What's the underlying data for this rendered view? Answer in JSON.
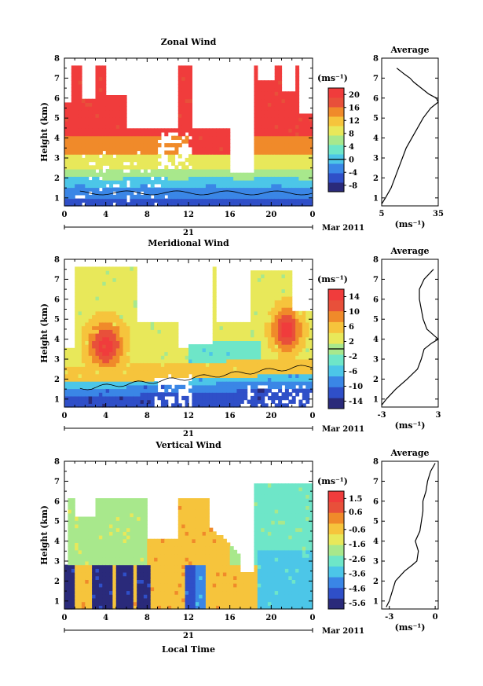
{
  "chart_data": [
    {
      "type": "heatmap",
      "title": "Zonal Wind",
      "ylabel": "Height (km)",
      "ylim": [
        0.6,
        8
      ],
      "y_ticks": [
        "1",
        "2",
        "3",
        "4",
        "5",
        "6",
        "7",
        "8"
      ],
      "xlim": [
        0,
        24
      ],
      "x_ticks": [
        "0",
        "4",
        "8",
        "12",
        "16",
        "20",
        "0"
      ],
      "date_day": "21",
      "date_month": "Mar 2011",
      "colorbar_unit": "(ms⁻¹)",
      "colorbar_ticks": [
        "20",
        "16",
        "12",
        "8",
        "4",
        "0",
        "-4",
        "-8"
      ],
      "colorbar_range": [
        -10,
        22
      ],
      "colors": [
        "#2a2a7a",
        "#2f4fc8",
        "#3a86e6",
        "#4cc6e8",
        "#6ee6c8",
        "#a8e88c",
        "#e8e85a",
        "#f6c43c",
        "#f08a2a",
        "#e8503a",
        "#f03c3c"
      ],
      "average": {
        "title": "Average",
        "xlabel": "(ms⁻¹)",
        "x_ticks": [
          "5",
          "35"
        ],
        "xlim": [
          5,
          35
        ],
        "profile_height_km": [
          0.7,
          1.0,
          1.5,
          2.0,
          2.5,
          3.0,
          3.5,
          4.0,
          4.5,
          5.0,
          5.5,
          5.8,
          6.0,
          6.2,
          6.5,
          6.8,
          7.0,
          7.2,
          7.5
        ],
        "profile_value": [
          5,
          7,
          10,
          12,
          14,
          16,
          18,
          21,
          24,
          27,
          31,
          35,
          34,
          30,
          26,
          22,
          20,
          17,
          13
        ]
      }
    },
    {
      "type": "heatmap",
      "title": "Meridional Wind",
      "ylabel": "Height (km)",
      "ylim": [
        0.6,
        8
      ],
      "y_ticks": [
        "1",
        "2",
        "3",
        "4",
        "5",
        "6",
        "7",
        "8"
      ],
      "xlim": [
        0,
        24
      ],
      "x_ticks": [
        "0",
        "4",
        "8",
        "12",
        "16",
        "20",
        "0"
      ],
      "date_day": "21",
      "date_month": "Mar 2011",
      "colorbar_unit": "(ms⁻¹)",
      "colorbar_ticks": [
        "14",
        "10",
        "6",
        "2",
        "-2",
        "-6",
        "-10",
        "-14"
      ],
      "colorbar_range": [
        -16,
        16
      ],
      "colors": [
        "#2a2a7a",
        "#2f4fc8",
        "#3a86e6",
        "#4cc6e8",
        "#6ee6c8",
        "#a8e88c",
        "#e8e85a",
        "#f6c43c",
        "#f08a2a",
        "#e8503a",
        "#f03c3c"
      ],
      "average": {
        "title": "Average",
        "xlabel": "(ms⁻¹)",
        "x_ticks": [
          "-3",
          "3"
        ],
        "xlim": [
          -3,
          3
        ],
        "profile_height_km": [
          0.7,
          1.0,
          1.5,
          2.0,
          2.5,
          3.0,
          3.5,
          3.8,
          4.0,
          4.5,
          5.0,
          5.5,
          6.0,
          6.5,
          7.0,
          7.5
        ],
        "profile_value": [
          -3,
          -2.5,
          -1.5,
          -0.3,
          0.8,
          1.2,
          1.5,
          2.3,
          3.0,
          1.8,
          1.4,
          1.2,
          1.0,
          1.0,
          1.5,
          2.5
        ]
      }
    },
    {
      "type": "heatmap",
      "title": "Vertical Wind",
      "ylabel": "Height (km)",
      "xlabel": "Local Time",
      "ylim": [
        0.6,
        8
      ],
      "y_ticks": [
        "1",
        "2",
        "3",
        "4",
        "5",
        "6",
        "7",
        "8"
      ],
      "xlim": [
        0,
        24
      ],
      "x_ticks": [
        "0",
        "4",
        "8",
        "12",
        "16",
        "20",
        "0"
      ],
      "date_day": "21",
      "date_month": "Mar 2011",
      "colorbar_unit": "(ms⁻¹)",
      "colorbar_ticks": [
        "1.5",
        "0.6",
        "-0.6",
        "-1.6",
        "-2.6",
        "-3.6",
        "-4.6",
        "-5.6"
      ],
      "colorbar_range": [
        -6,
        2
      ],
      "colors": [
        "#2a2a7a",
        "#2f4fc8",
        "#3a86e6",
        "#4cc6e8",
        "#6ee6c8",
        "#a8e88c",
        "#e8e85a",
        "#f6c43c",
        "#f08a2a",
        "#e8503a",
        "#f03c3c"
      ],
      "average": {
        "title": "Average",
        "xlabel": "(ms⁻¹)",
        "x_ticks": [
          "-3",
          "0"
        ],
        "xlim": [
          -3.5,
          0.2
        ],
        "profile_height_km": [
          0.7,
          1.0,
          1.5,
          2.0,
          2.5,
          2.8,
          3.0,
          3.5,
          4.0,
          4.5,
          5.0,
          5.5,
          6.0,
          6.5,
          7.0,
          7.5,
          7.9
        ],
        "profile_value": [
          -3.2,
          -3.0,
          -2.8,
          -2.6,
          -2.0,
          -1.5,
          -1.2,
          -1.1,
          -1.3,
          -1.0,
          -0.9,
          -0.8,
          -0.8,
          -0.6,
          -0.5,
          -0.3,
          0.0
        ]
      }
    }
  ]
}
